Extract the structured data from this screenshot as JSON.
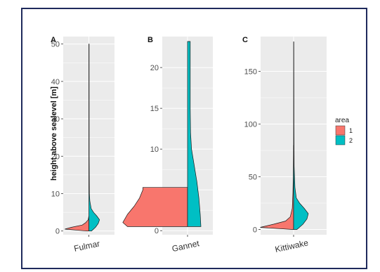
{
  "colors": {
    "area1": "#F8766D",
    "area2": "#00BFC4",
    "panel_bg": "#EBEBEB",
    "grid": "#FFFFFF",
    "frame": "#1F2A5C"
  },
  "ylabel": "height above sealevel [m]",
  "legend": {
    "title": "area",
    "items": [
      "1",
      "2"
    ]
  },
  "chart_data": [
    {
      "type": "violin",
      "panel_label": "A",
      "category": "Fulmar",
      "ylim": [
        -1,
        52
      ],
      "yticks": [
        0,
        10,
        20,
        30,
        40,
        50
      ],
      "ytick_labels": [
        "0",
        "10",
        "20",
        "30",
        "40",
        "50"
      ],
      "grid": true,
      "series": [
        {
          "name": "1",
          "side": "left",
          "profile": [
            [
              0,
              0.03
            ],
            [
              0.5,
              0.36
            ],
            [
              1,
              0.26
            ],
            [
              1.6,
              0.1
            ],
            [
              2.2,
              0.05
            ],
            [
              3,
              0.01
            ],
            [
              4,
              0
            ]
          ]
        },
        {
          "name": "2",
          "side": "right",
          "profile": [
            [
              0,
              0.04
            ],
            [
              1,
              0.1
            ],
            [
              2,
              0.14
            ],
            [
              3,
              0.16
            ],
            [
              4,
              0.12
            ],
            [
              5,
              0.07
            ],
            [
              6,
              0.035
            ],
            [
              8,
              0.015
            ],
            [
              10,
              0.008
            ],
            [
              20,
              0.005
            ],
            [
              50,
              0.004
            ]
          ]
        }
      ]
    },
    {
      "type": "violin",
      "panel_label": "B",
      "category": "Gannet",
      "ylim": [
        -0.5,
        23.8
      ],
      "yticks": [
        0,
        5,
        10,
        15,
        20
      ],
      "ytick_labels": [
        "0",
        "5",
        "10",
        "15",
        "20"
      ],
      "grid": true,
      "series": [
        {
          "name": "1",
          "side": "left",
          "profile": [
            [
              0.5,
              0.9
            ],
            [
              1,
              0.97
            ],
            [
              2,
              0.9
            ],
            [
              3,
              0.8
            ],
            [
              4,
              0.72
            ],
            [
              5,
              0.67
            ],
            [
              5.3,
              0.67
            ]
          ]
        },
        {
          "name": "2",
          "side": "right",
          "profile": [
            [
              0.5,
              0.2
            ],
            [
              2,
              0.19
            ],
            [
              4,
              0.17
            ],
            [
              6,
              0.14
            ],
            [
              8,
              0.1
            ],
            [
              10,
              0.06
            ],
            [
              12,
              0.045
            ],
            [
              15,
              0.04
            ],
            [
              18,
              0.04
            ],
            [
              21,
              0.04
            ],
            [
              23.2,
              0.04
            ]
          ]
        }
      ]
    },
    {
      "type": "violin",
      "panel_label": "C",
      "category": "Kittiwake",
      "ylim": [
        -5,
        183
      ],
      "yticks": [
        0,
        50,
        100,
        150
      ],
      "ytick_labels": [
        "0",
        "50",
        "100",
        "150"
      ],
      "grid": true,
      "series": [
        {
          "name": "1",
          "side": "left",
          "profile": [
            [
              0,
              0.02
            ],
            [
              2,
              0.5
            ],
            [
              5,
              0.3
            ],
            [
              8,
              0.12
            ],
            [
              12,
              0.05
            ],
            [
              20,
              0.02
            ],
            [
              35,
              0.01
            ],
            [
              50,
              0.005
            ],
            [
              80,
              0
            ]
          ]
        },
        {
          "name": "2",
          "side": "right",
          "profile": [
            [
              0,
              0.05
            ],
            [
              5,
              0.14
            ],
            [
              10,
              0.2
            ],
            [
              15,
              0.22
            ],
            [
              20,
              0.16
            ],
            [
              25,
              0.09
            ],
            [
              30,
              0.04
            ],
            [
              40,
              0.02
            ],
            [
              60,
              0.008
            ],
            [
              100,
              0.005
            ],
            [
              178,
              0.003
            ]
          ]
        }
      ]
    }
  ]
}
